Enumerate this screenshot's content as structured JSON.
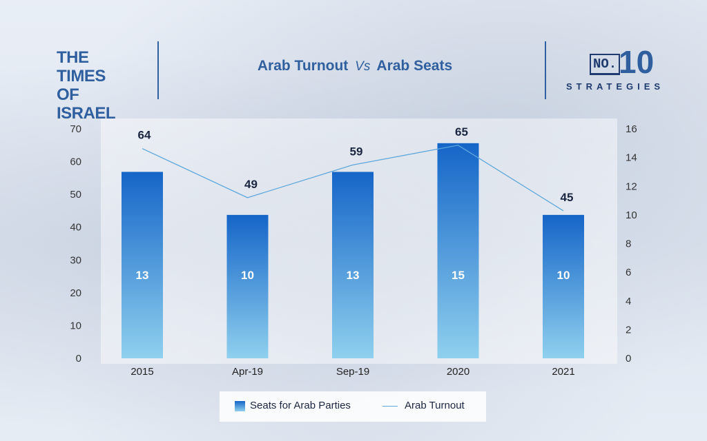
{
  "header": {
    "logo_line1": "THE TIMES",
    "logo_line2": "OF ISRAEL",
    "title_part1": "Arab Turnout",
    "title_vs": "Vs",
    "title_part2": "Arab Seats",
    "brand_no": "NO.",
    "brand_number": "10",
    "brand_word": "STRATEGIES"
  },
  "colors": {
    "accent": "#2f5f9e",
    "bar_top": "#1565c8",
    "bar_bottom": "#8fd0ee",
    "line": "#5ea8dd"
  },
  "chart_data": {
    "type": "bar",
    "categories": [
      "2015",
      "Apr-19",
      "Sep-19",
      "2020",
      "2021"
    ],
    "series": [
      {
        "name": "Seats for Arab Parties",
        "type": "bar",
        "axis": "right",
        "values": [
          13,
          10,
          13,
          15,
          10
        ]
      },
      {
        "name": "Arab Turnout",
        "type": "line",
        "axis": "left",
        "values": [
          64,
          49,
          59,
          65,
          45
        ]
      }
    ],
    "left_axis": {
      "ylim": [
        0,
        70
      ],
      "ticks": [
        0,
        10,
        20,
        30,
        40,
        50,
        60,
        70
      ]
    },
    "right_axis": {
      "ylim": [
        0,
        16
      ],
      "ticks": [
        0,
        2,
        4,
        6,
        8,
        10,
        12,
        14,
        16
      ]
    },
    "legend_position": "bottom",
    "grid": false
  }
}
